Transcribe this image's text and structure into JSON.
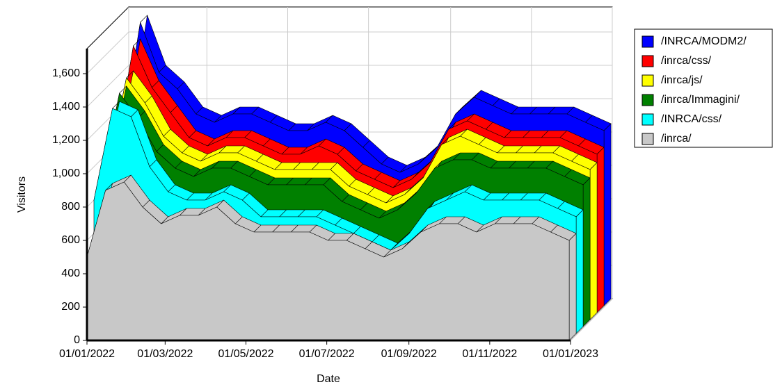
{
  "chart_data": {
    "type": "area3d",
    "xlabel": "Date",
    "ylabel": "Visitors",
    "x": [
      "01/01/2022",
      "15/01/2022",
      "29/01/2022",
      "12/02/2022",
      "26/02/2022",
      "12/03/2022",
      "26/03/2022",
      "09/04/2022",
      "23/04/2022",
      "07/05/2022",
      "21/05/2022",
      "04/06/2022",
      "18/06/2022",
      "02/07/2022",
      "16/07/2022",
      "30/07/2022",
      "13/08/2022",
      "27/08/2022",
      "10/09/2022",
      "24/09/2022",
      "08/10/2022",
      "22/10/2022",
      "05/11/2022",
      "19/11/2022",
      "03/12/2022",
      "17/12/2022",
      "31/12/2022"
    ],
    "series": [
      {
        "name": "/INRCA/MODM2/",
        "color": "#0000ff",
        "values": [
          1000,
          1700,
          1400,
          1300,
          1150,
          1100,
          1150,
          1150,
          1100,
          1050,
          1050,
          1100,
          1050,
          950,
          850,
          800,
          850,
          950,
          1150,
          1250,
          1200,
          1150,
          1150,
          1150,
          1150,
          1100,
          1050
        ]
      },
      {
        "name": "/inrca/css/",
        "color": "#ff0000",
        "values": [
          950,
          1600,
          1350,
          1200,
          1050,
          1000,
          1050,
          1050,
          1000,
          950,
          950,
          1000,
          950,
          850,
          800,
          750,
          800,
          900,
          1100,
          1150,
          1100,
          1050,
          1050,
          1050,
          1050,
          1000,
          950
        ]
      },
      {
        "name": "/inrca/js/",
        "color": "#ffff00",
        "values": [
          900,
          1450,
          1300,
          1100,
          1000,
          950,
          1000,
          1000,
          950,
          900,
          900,
          900,
          900,
          800,
          750,
          700,
          750,
          850,
          1050,
          1100,
          1050,
          1000,
          1000,
          1000,
          1000,
          950,
          900
        ]
      },
      {
        "name": "/inrca/Immagini/",
        "color": "#008000",
        "values": [
          850,
          1400,
          1250,
          1050,
          950,
          900,
          950,
          950,
          900,
          850,
          850,
          850,
          850,
          750,
          700,
          650,
          700,
          800,
          950,
          1000,
          1000,
          950,
          950,
          950,
          950,
          900,
          850
        ]
      },
      {
        "name": "/INRCA/css/",
        "color": "#00ffff",
        "values": [
          800,
          1350,
          1300,
          1000,
          850,
          800,
          800,
          850,
          800,
          700,
          700,
          700,
          700,
          650,
          600,
          550,
          500,
          600,
          750,
          800,
          850,
          800,
          800,
          800,
          800,
          750,
          700
        ]
      },
      {
        "name": "/inrca/",
        "color": "#c8c8c8",
        "values": [
          500,
          900,
          950,
          800,
          700,
          750,
          750,
          800,
          700,
          650,
          650,
          650,
          650,
          600,
          600,
          550,
          500,
          550,
          650,
          700,
          700,
          650,
          700,
          700,
          700,
          650,
          600
        ]
      }
    ],
    "xlim": [
      "01/01/2022",
      "01/01/2023"
    ],
    "xticks": [
      "01/01/2022",
      "01/03/2022",
      "01/05/2022",
      "01/07/2022",
      "01/09/2022",
      "01/11/2022",
      "01/01/2023"
    ],
    "ylim": [
      0,
      1750
    ],
    "yticks": [
      0,
      {
        "value": 200,
        "label": "200"
      },
      {
        "value": 400,
        "label": "400"
      },
      {
        "value": 600,
        "label": "600"
      },
      {
        "value": 800,
        "label": "800"
      },
      {
        "value": 1000,
        "label": "1,000"
      },
      {
        "value": 1200,
        "label": "1,200"
      },
      {
        "value": 1400,
        "label": "1,400"
      },
      {
        "value": 1600,
        "label": "1,600"
      }
    ],
    "grid": true,
    "legend": "right"
  }
}
